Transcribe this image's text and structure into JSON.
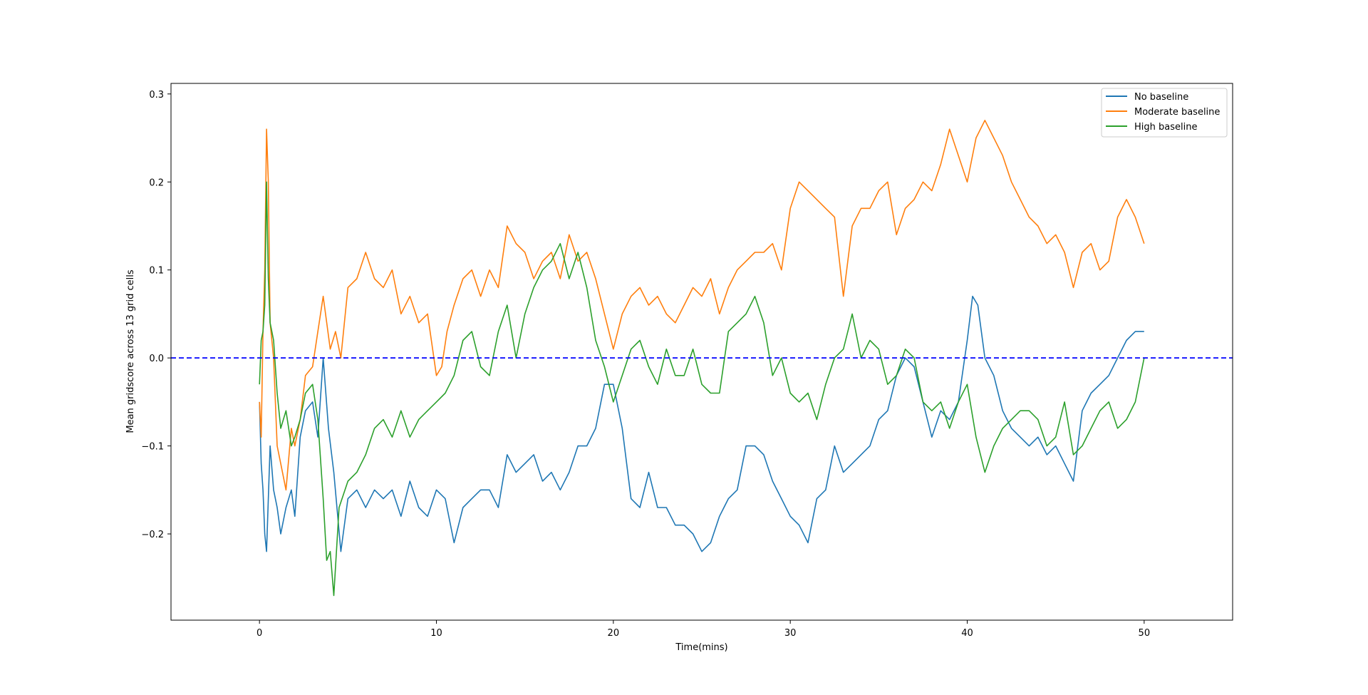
{
  "chart_data": {
    "type": "line",
    "xlabel": "Time(mins)",
    "ylabel": "Mean gridscore across 13 grid cells",
    "xlim": [
      -5,
      55
    ],
    "ylim": [
      -0.298,
      0.312
    ],
    "xticks": [
      0,
      10,
      20,
      30,
      40,
      50
    ],
    "xtick_labels": [
      "0",
      "10",
      "20",
      "30",
      "40",
      "50"
    ],
    "yticks": [
      -0.2,
      -0.1,
      0.0,
      0.1,
      0.2,
      0.3
    ],
    "ytick_labels": [
      "−0.2",
      "−0.1",
      "0.0",
      "0.1",
      "0.2",
      "0.3"
    ],
    "grid": false,
    "legend_position": "top-right",
    "reference_line": {
      "y": 0.0,
      "style": "dashed",
      "color": "#0000ff"
    },
    "series": [
      {
        "name": "No baseline",
        "color": "#1f77b4",
        "x": [
          0,
          0.1,
          0.2,
          0.3,
          0.4,
          0.6,
          0.8,
          1.0,
          1.2,
          1.5,
          1.8,
          2.0,
          2.3,
          2.6,
          3.0,
          3.3,
          3.6,
          3.9,
          4.2,
          4.6,
          5.0,
          5.5,
          6.0,
          6.5,
          7.0,
          7.5,
          8.0,
          8.5,
          9.0,
          9.5,
          10.0,
          10.5,
          11.0,
          11.5,
          12.0,
          12.5,
          13.0,
          13.5,
          14.0,
          14.5,
          15.0,
          15.5,
          16.0,
          16.5,
          17.0,
          17.5,
          18.0,
          18.5,
          19.0,
          19.5,
          20.0,
          20.5,
          21.0,
          21.5,
          22.0,
          22.5,
          23.0,
          23.5,
          24.0,
          24.5,
          25.0,
          25.5,
          26.0,
          26.5,
          27.0,
          27.5,
          28.0,
          28.5,
          29.0,
          29.5,
          30.0,
          30.5,
          31.0,
          31.5,
          32.0,
          32.5,
          33.0,
          33.5,
          34.0,
          34.5,
          35.0,
          35.5,
          36.0,
          36.5,
          37.0,
          37.5,
          38.0,
          38.5,
          39.0,
          39.5,
          40.0,
          40.3,
          40.6,
          41.0,
          41.5,
          42.0,
          42.5,
          43.0,
          43.5,
          44.0,
          44.5,
          45.0,
          45.5,
          46.0,
          46.5,
          47.0,
          47.5,
          48.0,
          48.5,
          49.0,
          49.5,
          50.0
        ],
        "y": [
          -0.05,
          -0.12,
          -0.15,
          -0.2,
          -0.22,
          -0.1,
          -0.15,
          -0.17,
          -0.2,
          -0.17,
          -0.15,
          -0.18,
          -0.09,
          -0.06,
          -0.05,
          -0.09,
          0.0,
          -0.08,
          -0.13,
          -0.22,
          -0.16,
          -0.15,
          -0.17,
          -0.15,
          -0.16,
          -0.15,
          -0.18,
          -0.14,
          -0.17,
          -0.18,
          -0.15,
          -0.16,
          -0.21,
          -0.17,
          -0.16,
          -0.15,
          -0.15,
          -0.17,
          -0.11,
          -0.13,
          -0.12,
          -0.11,
          -0.14,
          -0.13,
          -0.15,
          -0.13,
          -0.1,
          -0.1,
          -0.08,
          -0.03,
          -0.03,
          -0.08,
          -0.16,
          -0.17,
          -0.13,
          -0.17,
          -0.17,
          -0.19,
          -0.19,
          -0.2,
          -0.22,
          -0.21,
          -0.18,
          -0.16,
          -0.15,
          -0.1,
          -0.1,
          -0.11,
          -0.14,
          -0.16,
          -0.18,
          -0.19,
          -0.21,
          -0.16,
          -0.15,
          -0.1,
          -0.13,
          -0.12,
          -0.11,
          -0.1,
          -0.07,
          -0.06,
          -0.02,
          0.0,
          -0.01,
          -0.05,
          -0.09,
          -0.06,
          -0.07,
          -0.05,
          0.02,
          0.07,
          0.06,
          0.0,
          -0.02,
          -0.06,
          -0.08,
          -0.09,
          -0.1,
          -0.09,
          -0.11,
          -0.1,
          -0.12,
          -0.14,
          -0.06,
          -0.04,
          -0.03,
          -0.02,
          0.0,
          0.02,
          0.03,
          0.03
        ]
      },
      {
        "name": "Moderate baseline",
        "color": "#ff7f0e",
        "x": [
          0,
          0.1,
          0.2,
          0.3,
          0.4,
          0.5,
          0.6,
          0.8,
          1.0,
          1.2,
          1.5,
          1.8,
          2.0,
          2.3,
          2.6,
          3.0,
          3.3,
          3.6,
          4.0,
          4.3,
          4.6,
          5.0,
          5.5,
          6.0,
          6.5,
          7.0,
          7.5,
          8.0,
          8.5,
          9.0,
          9.5,
          10.0,
          10.3,
          10.6,
          11.0,
          11.5,
          12.0,
          12.5,
          13.0,
          13.5,
          14.0,
          14.5,
          15.0,
          15.5,
          16.0,
          16.5,
          17.0,
          17.5,
          18.0,
          18.5,
          19.0,
          19.5,
          20.0,
          20.5,
          21.0,
          21.5,
          22.0,
          22.5,
          23.0,
          23.5,
          24.0,
          24.5,
          25.0,
          25.5,
          26.0,
          26.5,
          27.0,
          27.5,
          28.0,
          28.5,
          29.0,
          29.5,
          30.0,
          30.5,
          31.0,
          31.5,
          32.0,
          32.5,
          33.0,
          33.5,
          34.0,
          34.5,
          35.0,
          35.5,
          36.0,
          36.5,
          37.0,
          37.5,
          38.0,
          38.5,
          39.0,
          39.5,
          40.0,
          40.5,
          41.0,
          41.5,
          42.0,
          42.5,
          43.0,
          43.5,
          44.0,
          44.5,
          45.0,
          45.5,
          46.0,
          46.5,
          47.0,
          47.5,
          48.0,
          48.5,
          49.0,
          49.5,
          50.0
        ],
        "y": [
          -0.05,
          -0.09,
          0.03,
          0.1,
          0.26,
          0.2,
          0.04,
          0.0,
          -0.1,
          -0.12,
          -0.15,
          -0.08,
          -0.1,
          -0.07,
          -0.02,
          -0.01,
          0.03,
          0.07,
          0.01,
          0.03,
          0.0,
          0.08,
          0.09,
          0.12,
          0.09,
          0.08,
          0.1,
          0.05,
          0.07,
          0.04,
          0.05,
          -0.02,
          -0.01,
          0.03,
          0.06,
          0.09,
          0.1,
          0.07,
          0.1,
          0.08,
          0.15,
          0.13,
          0.12,
          0.09,
          0.11,
          0.12,
          0.09,
          0.14,
          0.11,
          0.12,
          0.09,
          0.05,
          0.01,
          0.05,
          0.07,
          0.08,
          0.06,
          0.07,
          0.05,
          0.04,
          0.06,
          0.08,
          0.07,
          0.09,
          0.05,
          0.08,
          0.1,
          0.11,
          0.12,
          0.12,
          0.13,
          0.1,
          0.17,
          0.2,
          0.19,
          0.18,
          0.17,
          0.16,
          0.07,
          0.15,
          0.17,
          0.17,
          0.19,
          0.2,
          0.14,
          0.17,
          0.18,
          0.2,
          0.19,
          0.22,
          0.26,
          0.23,
          0.2,
          0.25,
          0.27,
          0.25,
          0.23,
          0.2,
          0.18,
          0.16,
          0.15,
          0.13,
          0.14,
          0.12,
          0.08,
          0.12,
          0.13,
          0.1,
          0.11,
          0.16,
          0.18,
          0.16,
          0.13
        ]
      },
      {
        "name": "High baseline",
        "color": "#2ca02c",
        "x": [
          0,
          0.1,
          0.2,
          0.3,
          0.4,
          0.5,
          0.6,
          0.8,
          1.0,
          1.2,
          1.5,
          1.8,
          2.0,
          2.3,
          2.6,
          3.0,
          3.3,
          3.6,
          3.8,
          4.0,
          4.2,
          4.5,
          5.0,
          5.5,
          6.0,
          6.5,
          7.0,
          7.5,
          8.0,
          8.5,
          9.0,
          9.5,
          10.0,
          10.5,
          11.0,
          11.5,
          12.0,
          12.5,
          13.0,
          13.5,
          14.0,
          14.5,
          15.0,
          15.5,
          16.0,
          16.5,
          17.0,
          17.5,
          18.0,
          18.5,
          19.0,
          19.5,
          20.0,
          20.5,
          21.0,
          21.5,
          22.0,
          22.5,
          23.0,
          23.5,
          24.0,
          24.5,
          25.0,
          25.5,
          26.0,
          26.5,
          27.0,
          27.5,
          28.0,
          28.5,
          29.0,
          29.5,
          30.0,
          30.5,
          31.0,
          31.5,
          32.0,
          32.5,
          33.0,
          33.5,
          34.0,
          34.5,
          35.0,
          35.5,
          36.0,
          36.5,
          37.0,
          37.5,
          38.0,
          38.5,
          39.0,
          39.5,
          40.0,
          40.5,
          41.0,
          41.5,
          42.0,
          42.5,
          43.0,
          43.5,
          44.0,
          44.5,
          45.0,
          45.5,
          46.0,
          46.5,
          47.0,
          47.5,
          48.0,
          48.5,
          49.0,
          49.5,
          50.0
        ],
        "y": [
          -0.03,
          0.02,
          0.03,
          0.06,
          0.2,
          0.09,
          0.04,
          0.02,
          -0.04,
          -0.08,
          -0.06,
          -0.1,
          -0.09,
          -0.07,
          -0.04,
          -0.03,
          -0.07,
          -0.16,
          -0.23,
          -0.22,
          -0.27,
          -0.17,
          -0.14,
          -0.13,
          -0.11,
          -0.08,
          -0.07,
          -0.09,
          -0.06,
          -0.09,
          -0.07,
          -0.06,
          -0.05,
          -0.04,
          -0.02,
          0.02,
          0.03,
          -0.01,
          -0.02,
          0.03,
          0.06,
          0.0,
          0.05,
          0.08,
          0.1,
          0.11,
          0.13,
          0.09,
          0.12,
          0.08,
          0.02,
          -0.01,
          -0.05,
          -0.02,
          0.01,
          0.02,
          -0.01,
          -0.03,
          0.01,
          -0.02,
          -0.02,
          0.01,
          -0.03,
          -0.04,
          -0.04,
          0.03,
          0.04,
          0.05,
          0.07,
          0.04,
          -0.02,
          0.0,
          -0.04,
          -0.05,
          -0.04,
          -0.07,
          -0.03,
          0.0,
          0.01,
          0.05,
          0.0,
          0.02,
          0.01,
          -0.03,
          -0.02,
          0.01,
          0.0,
          -0.05,
          -0.06,
          -0.05,
          -0.08,
          -0.05,
          -0.03,
          -0.09,
          -0.13,
          -0.1,
          -0.08,
          -0.07,
          -0.06,
          -0.06,
          -0.07,
          -0.1,
          -0.09,
          -0.05,
          -0.11,
          -0.1,
          -0.08,
          -0.06,
          -0.05,
          -0.08,
          -0.07,
          -0.05,
          0.0
        ]
      }
    ]
  }
}
